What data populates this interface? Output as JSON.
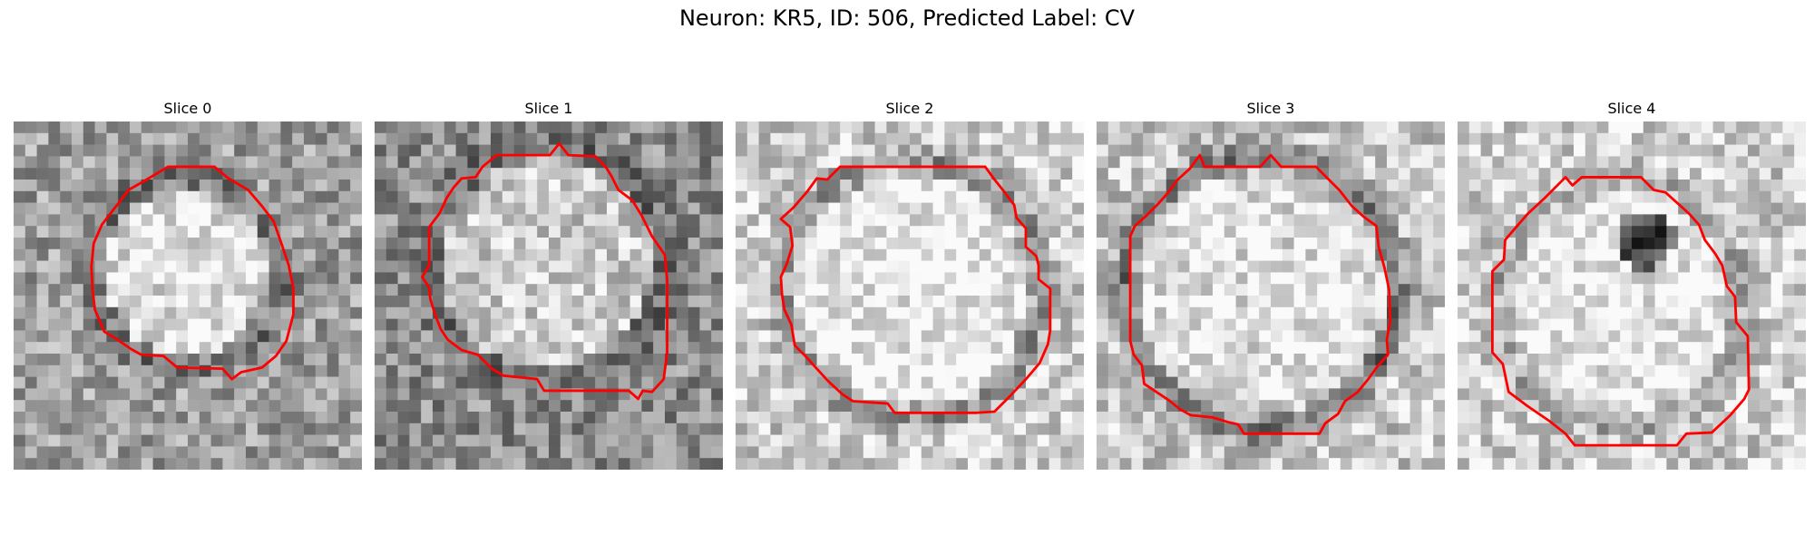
{
  "figure": {
    "title": "Neuron: KR5, ID: 506, Predicted Label: CV",
    "contour_color": "#ff0000"
  },
  "panels": [
    {
      "title": "Slice 0"
    },
    {
      "title": "Slice 1"
    },
    {
      "title": "Slice 2"
    },
    {
      "title": "Slice 3"
    },
    {
      "title": "Slice 4"
    }
  ]
}
